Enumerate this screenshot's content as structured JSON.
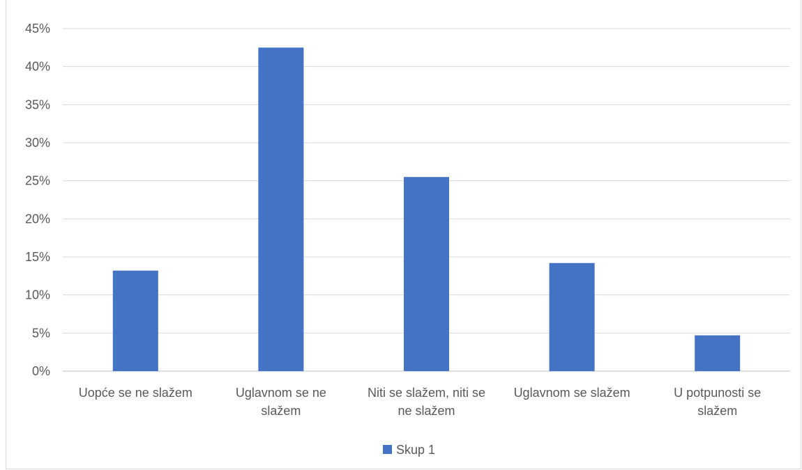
{
  "chart_data": {
    "type": "bar",
    "categories": [
      [
        "Uopće se ne slažem"
      ],
      [
        "Uglavnom se ne",
        "slažem"
      ],
      [
        "Niti se slažem, niti se",
        "ne slažem"
      ],
      [
        "Uglavnom se slažem"
      ],
      [
        "U potpunosti se",
        "slažem"
      ]
    ],
    "series": [
      {
        "name": "Skup 1",
        "values": [
          13.2,
          42.5,
          25.5,
          14.2,
          4.7
        ]
      }
    ],
    "y_ticks": [
      "0%",
      "5%",
      "10%",
      "15%",
      "20%",
      "25%",
      "30%",
      "35%",
      "40%",
      "45%"
    ],
    "ylim": [
      0,
      45
    ],
    "grid": true,
    "legend_position": "bottom",
    "colors": {
      "bar": "#4472c4",
      "grid": "#d9d9d9",
      "axis": "#bfbfbf",
      "text": "#595959"
    }
  }
}
